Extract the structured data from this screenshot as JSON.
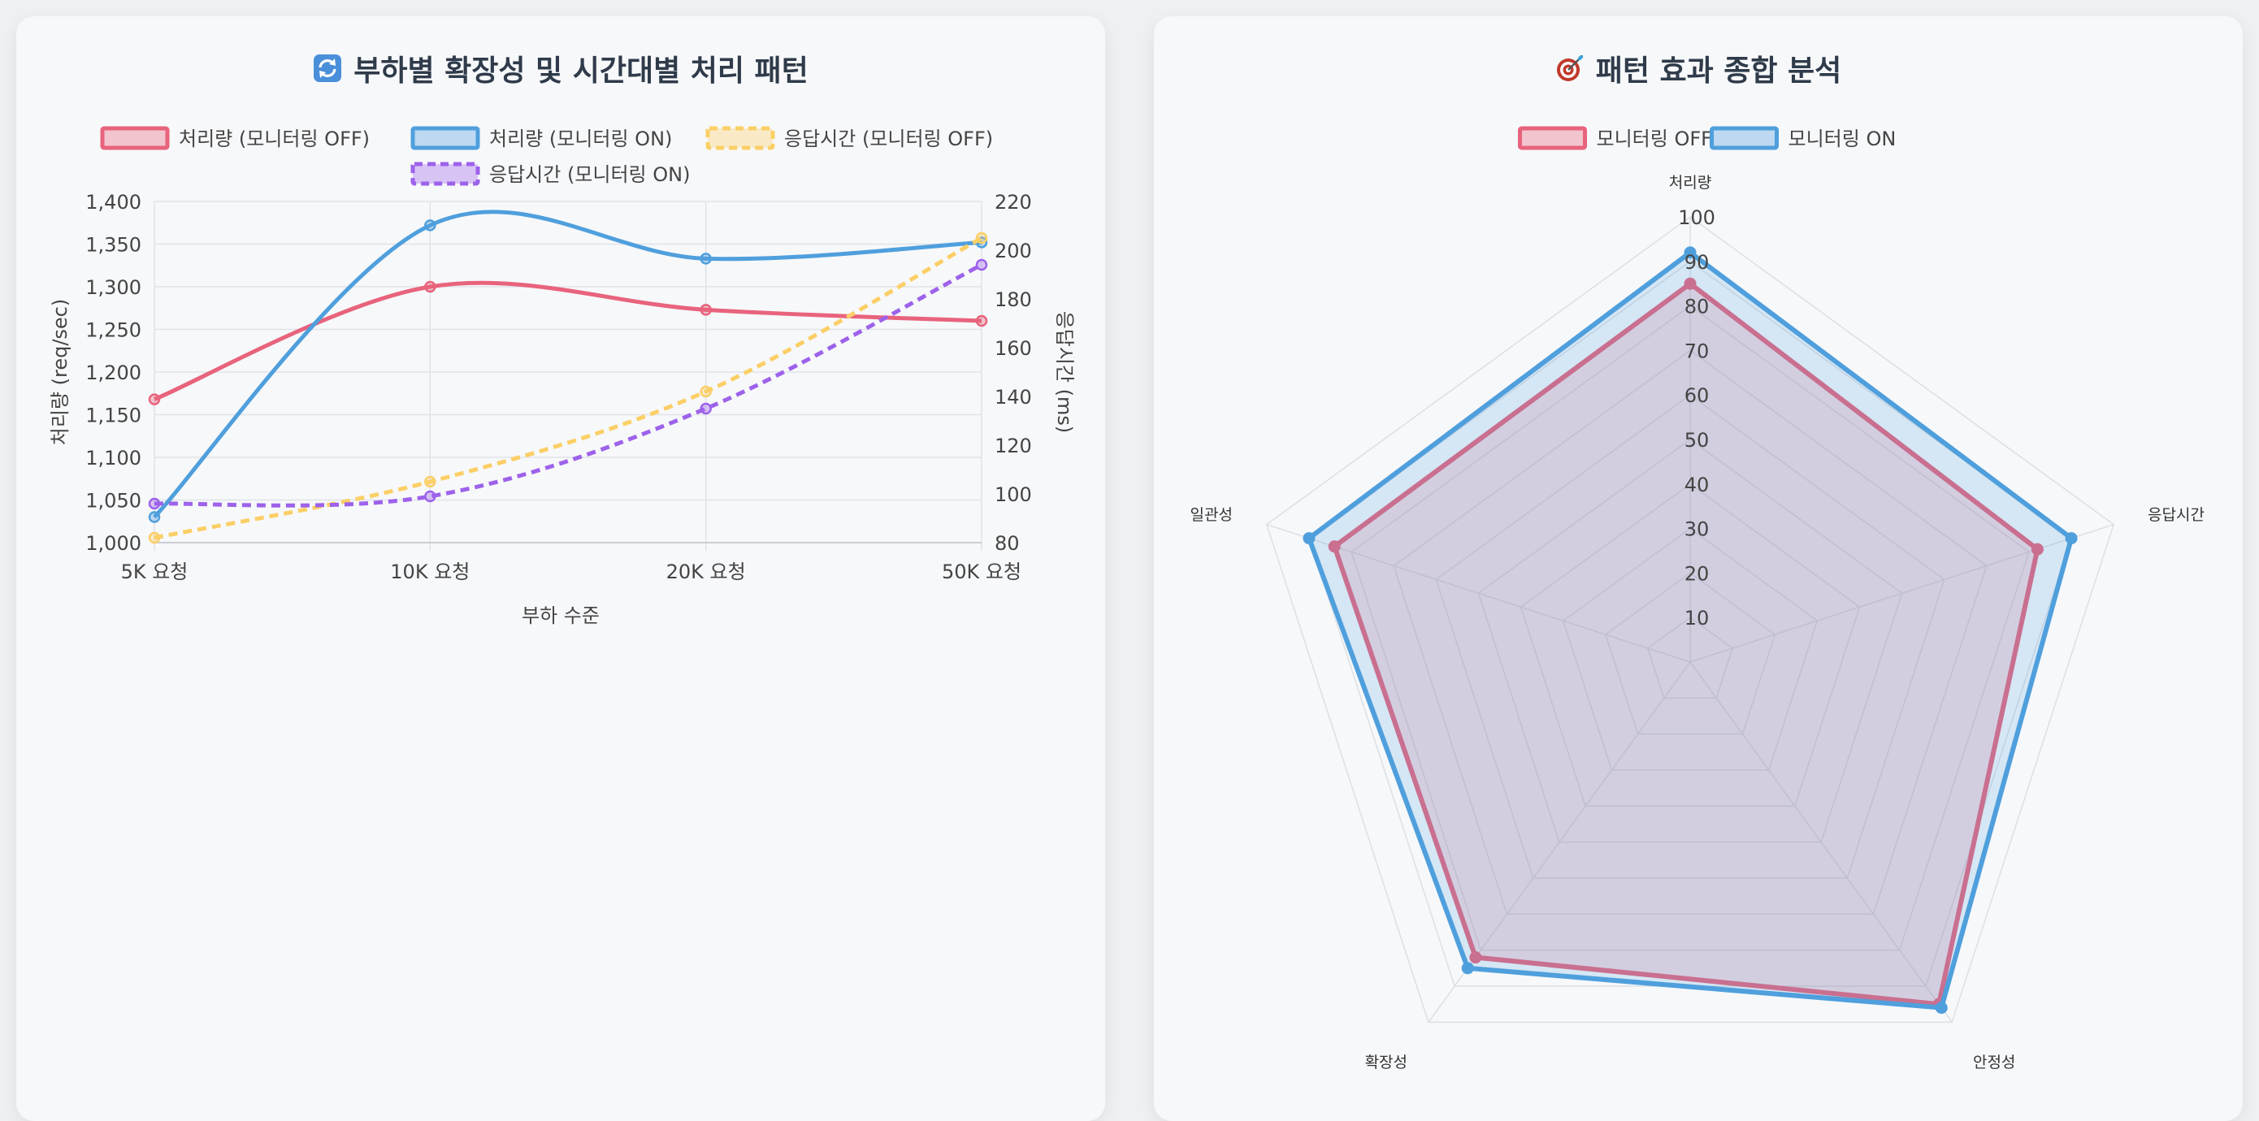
{
  "left_panel": {
    "title": "부하별 확장성 및 시간대별 처리 패턴",
    "title_icon": "refresh-icon"
  },
  "right_panel": {
    "title": "패턴 효과 종합 분석",
    "title_icon": "target-icon"
  },
  "chart_data": [
    {
      "type": "line",
      "categories": [
        "5K 요청",
        "10K 요청",
        "20K 요청",
        "50K 요청"
      ],
      "xlabel": "부하 수준",
      "ylabel": "처리량 (req/sec)",
      "ylim": [
        1000,
        1400
      ],
      "yticks": [
        "1,000",
        "1,050",
        "1,100",
        "1,150",
        "1,200",
        "1,250",
        "1,300",
        "1,350",
        "1,400"
      ],
      "y2label": "응답시간 (ms)",
      "y2lim": [
        80,
        220
      ],
      "y2ticks": [
        "80",
        "100",
        "120",
        "140",
        "160",
        "180",
        "200",
        "220"
      ],
      "grid": true,
      "legend_position": "top",
      "series": [
        {
          "name": "처리량 (모니터링 OFF)",
          "values": [
            1168,
            1300,
            1273,
            1260
          ],
          "axis": "y",
          "color": "#e8637c",
          "dashed": false
        },
        {
          "name": "처리량 (모니터링 ON)",
          "values": [
            1030,
            1372,
            1333,
            1352
          ],
          "axis": "y",
          "color": "#4f9fdd",
          "dashed": false
        },
        {
          "name": "응답시간 (모니터링 OFF)",
          "values": [
            82,
            105,
            142,
            205
          ],
          "axis": "y2",
          "color": "#fbcf66",
          "dashed": true
        },
        {
          "name": "응답시간 (모니터링 ON)",
          "values": [
            96,
            99,
            135,
            194
          ],
          "axis": "y2",
          "color": "#9d62ea",
          "dashed": true
        }
      ]
    },
    {
      "type": "radar",
      "categories": [
        "처리량",
        "응답시간",
        "안정성",
        "확장성",
        "일관성"
      ],
      "rlim": [
        0,
        100
      ],
      "rticks": [
        "10",
        "20",
        "30",
        "40",
        "50",
        "60",
        "70",
        "80",
        "90",
        "100"
      ],
      "legend_position": "top",
      "series": [
        {
          "name": "모니터링 OFF",
          "values": [
            85,
            82,
            95,
            82,
            84
          ],
          "color": "#e8637c"
        },
        {
          "name": "모니터링 ON",
          "values": [
            92,
            90,
            96,
            85,
            90
          ],
          "color": "#4f9fdd"
        }
      ]
    }
  ]
}
